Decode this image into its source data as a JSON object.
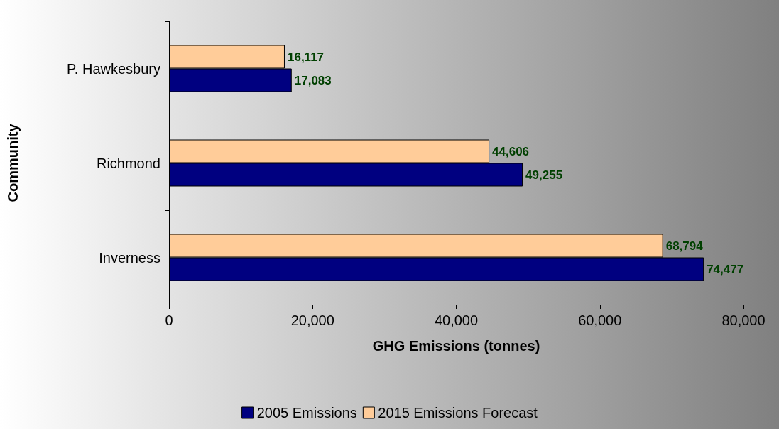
{
  "chart_data": {
    "type": "bar",
    "orientation": "horizontal",
    "xlabel": "GHG Emissions (tonnes)",
    "ylabel": "Community",
    "categories": [
      "P. Hawkesbury",
      "Richmond",
      "Inverness"
    ],
    "series": [
      {
        "name": "2005 Emissions",
        "color": "#000080",
        "values": [
          17083,
          49255,
          74477
        ],
        "value_labels": [
          "17,083",
          "49,255",
          "74,477"
        ]
      },
      {
        "name": "2015 Emissions Forecast",
        "color": "#ffcc99",
        "values": [
          16117,
          44606,
          68794
        ],
        "value_labels": [
          "16,117",
          "44,606",
          "68,794"
        ]
      }
    ],
    "xlim": [
      0,
      80000
    ],
    "xticks": [
      {
        "value": 0,
        "label": "0"
      },
      {
        "value": 20000,
        "label": "20,000"
      },
      {
        "value": 40000,
        "label": "40,000"
      },
      {
        "value": 60000,
        "label": "60,000"
      },
      {
        "value": 80000,
        "label": "80,000"
      }
    ],
    "grid": false,
    "legend": "bottom"
  }
}
